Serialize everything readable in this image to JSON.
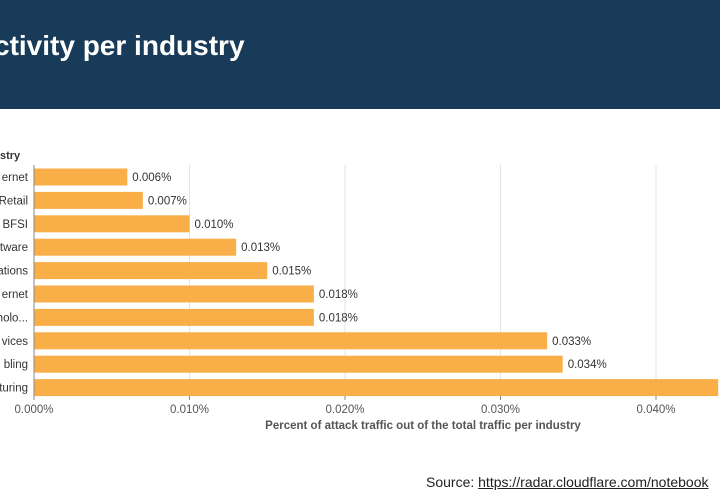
{
  "header": {
    "title": "ctivity per industry"
  },
  "source": {
    "prefix": "Source: ",
    "link_text": "https://radar.cloudflare.com/notebook"
  },
  "colors": {
    "header_bg": "#173b58",
    "bar": "#f9ae48",
    "grid": "#e3e3e3",
    "axis_text": "#555555"
  },
  "chart_data": {
    "type": "bar",
    "orientation": "horizontal",
    "y_axis_title": "stry",
    "xlabel": "Percent of attack traffic out of the total traffic per industry",
    "categories": [
      "ernet",
      "Retail",
      "BFSI",
      "tware",
      "ations",
      "ernet",
      "nolo...",
      "vices",
      "bling",
      "turing"
    ],
    "values": [
      0.006,
      0.007,
      0.01,
      0.013,
      0.015,
      0.018,
      0.018,
      0.033,
      0.034,
      0.044
    ],
    "data_labels": [
      "0.006%",
      "0.007%",
      "0.010%",
      "0.013%",
      "0.015%",
      "0.018%",
      "0.018%",
      "0.033%",
      "0.034%",
      ""
    ],
    "xlim": [
      0,
      0.044
    ],
    "xticks": [
      0,
      0.01,
      0.02,
      0.03,
      0.04
    ],
    "xtick_labels": [
      "0.000%",
      "0.010%",
      "0.020%",
      "0.030%",
      "0.040%"
    ],
    "grid": true
  }
}
